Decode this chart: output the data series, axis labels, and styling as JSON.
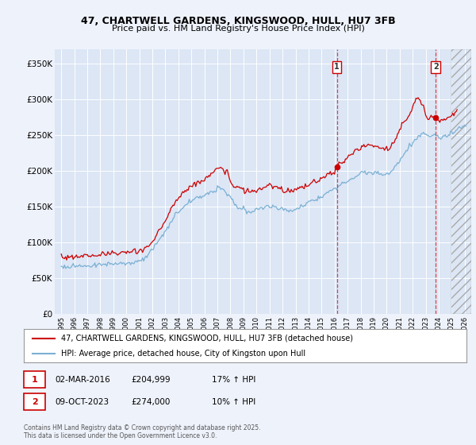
{
  "title_line1": "47, CHARTWELL GARDENS, KINGSWOOD, HULL, HU7 3FB",
  "title_line2": "Price paid vs. HM Land Registry's House Price Index (HPI)",
  "background_color": "#eef2fb",
  "plot_bg_color": "#dce6f5",
  "red_color": "#cc0000",
  "blue_color": "#7ab0d4",
  "legend_line1": "47, CHARTWELL GARDENS, KINGSWOOD, HULL, HU7 3FB (detached house)",
  "legend_line2": "HPI: Average price, detached house, City of Kingston upon Hull",
  "footer": "Contains HM Land Registry data © Crown copyright and database right 2025.\nThis data is licensed under the Open Government Licence v3.0.",
  "ytick_labels": [
    "£0",
    "£50K",
    "£100K",
    "£150K",
    "£200K",
    "£250K",
    "£300K",
    "£350K"
  ],
  "ytick_values": [
    0,
    50000,
    100000,
    150000,
    200000,
    250000,
    300000,
    350000
  ],
  "ylim": [
    0,
    370000
  ],
  "m1_x": 2016.17,
  "m1_y": 204999,
  "m2_x": 2023.77,
  "m2_y": 274000,
  "m1_label": "1",
  "m2_label": "2",
  "m1_date": "02-MAR-2016",
  "m1_price": "£204,999",
  "m1_hpi": "17% ↑ HPI",
  "m2_date": "09-OCT-2023",
  "m2_price": "£274,000",
  "m2_hpi": "10% ↑ HPI",
  "hatch_start": 2025.0,
  "xlim_min": 1994.5,
  "xlim_max": 2026.5
}
